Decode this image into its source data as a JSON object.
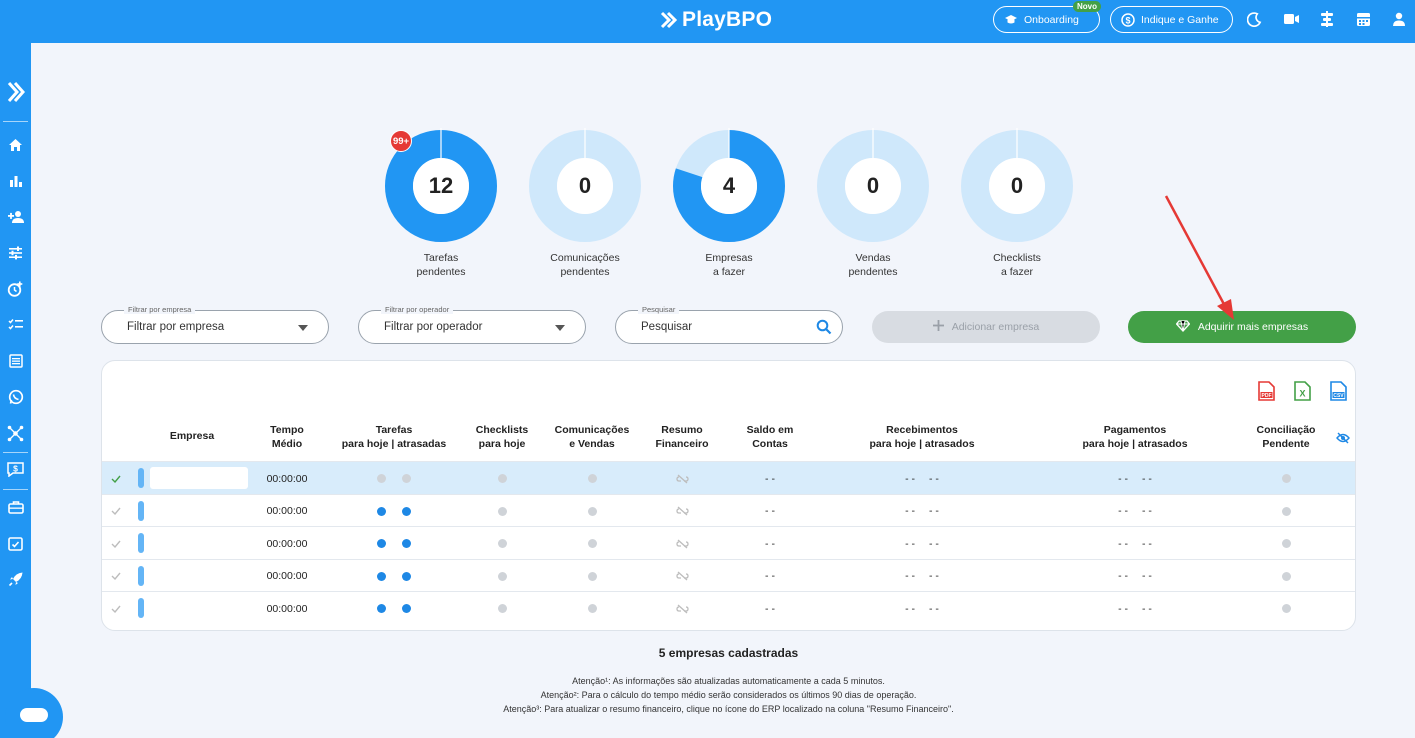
{
  "header": {
    "brand": "PlayBPO",
    "onboarding_label": "Onboarding",
    "novo_badge": "Novo",
    "indique_label": "Indique e Ganhe"
  },
  "sidebar": {
    "items": [
      "expand-icon",
      "home-icon",
      "bar-chart-icon",
      "add-user-icon",
      "sliders-icon",
      "alarm-add-icon",
      "checklist-icon",
      "list-icon",
      "whatsapp-icon",
      "network-icon",
      "money-icon",
      "briefcase-icon",
      "calendar-check-icon",
      "rocket-icon"
    ]
  },
  "donuts": [
    {
      "value": "12",
      "label1": "Tarefas",
      "label2": "pendentes",
      "fraction": 1.0,
      "badge": "99+"
    },
    {
      "value": "0",
      "label1": "Comunicações",
      "label2": "pendentes",
      "fraction": 0.0
    },
    {
      "value": "4",
      "label1": "Empresas",
      "label2": "a fazer",
      "fraction": 0.8
    },
    {
      "value": "0",
      "label1": "Vendas",
      "label2": "pendentes",
      "fraction": 0.0
    },
    {
      "value": "0",
      "label1": "Checklists",
      "label2": "a fazer",
      "fraction": 0.0
    }
  ],
  "filters": {
    "empresa": {
      "label": "Filtrar por empresa",
      "value": "Filtrar por empresa"
    },
    "operador": {
      "label": "Filtrar por operador",
      "value": "Filtrar por operador"
    },
    "pesquisar": {
      "label": "Pesquisar",
      "value": "Pesquisar"
    },
    "add_button": "Adicionar empresa",
    "buy_button": "Adquirir mais empresas"
  },
  "table": {
    "headers": {
      "empresa": "Empresa",
      "tempo": [
        "Tempo",
        "Médio"
      ],
      "tarefas": [
        "Tarefas",
        "para hoje | atrasadas"
      ],
      "checklists": [
        "Checklists",
        "para hoje"
      ],
      "comunicacoes": [
        "Comunicações",
        "e Vendas"
      ],
      "resumo": [
        "Resumo",
        "Financeiro"
      ],
      "saldo": [
        "Saldo em",
        "Contas"
      ],
      "recebimentos": [
        "Recebimentos",
        "para hoje | atrasados"
      ],
      "pagamentos": [
        "Pagamentos",
        "para hoje | atrasados"
      ],
      "conciliacao": [
        "Conciliação",
        "Pendente"
      ]
    },
    "rows": [
      {
        "tempo": "00:00:00",
        "tarefas": [
          "gray",
          "gray"
        ],
        "saldo": "- -",
        "receb": [
          "- -",
          "- -"
        ],
        "pag": [
          "- -",
          "- -"
        ],
        "selected": true
      },
      {
        "tempo": "00:00:00",
        "tarefas": [
          "blue",
          "blue"
        ],
        "saldo": "- -",
        "receb": [
          "- -",
          "- -"
        ],
        "pag": [
          "- -",
          "- -"
        ],
        "selected": false
      },
      {
        "tempo": "00:00:00",
        "tarefas": [
          "blue",
          "blue"
        ],
        "saldo": "- -",
        "receb": [
          "- -",
          "- -"
        ],
        "pag": [
          "- -",
          "- -"
        ],
        "selected": false
      },
      {
        "tempo": "00:00:00",
        "tarefas": [
          "blue",
          "blue"
        ],
        "saldo": "- -",
        "receb": [
          "- -",
          "- -"
        ],
        "pag": [
          "- -",
          "- -"
        ],
        "selected": false
      },
      {
        "tempo": "00:00:00",
        "tarefas": [
          "blue",
          "blue"
        ],
        "saldo": "- -",
        "receb": [
          "- -",
          "- -"
        ],
        "pag": [
          "- -",
          "- -"
        ],
        "selected": false
      }
    ]
  },
  "summary": "5 empresas cadastradas",
  "notes": [
    "Atenção¹: As informações são atualizadas automaticamente a cada 5 minutos.",
    "Atenção²: Para o cálculo do tempo médio serão considerados os últimos 90 dias de operação.",
    "Atenção³: Para atualizar o resumo financeiro, clique no ícone do ERP localizado na coluna \"Resumo Financeiro\"."
  ],
  "colors": {
    "primary": "#2196f3",
    "light": "#cfe8fb",
    "green": "#43a047",
    "red": "#e53935"
  }
}
